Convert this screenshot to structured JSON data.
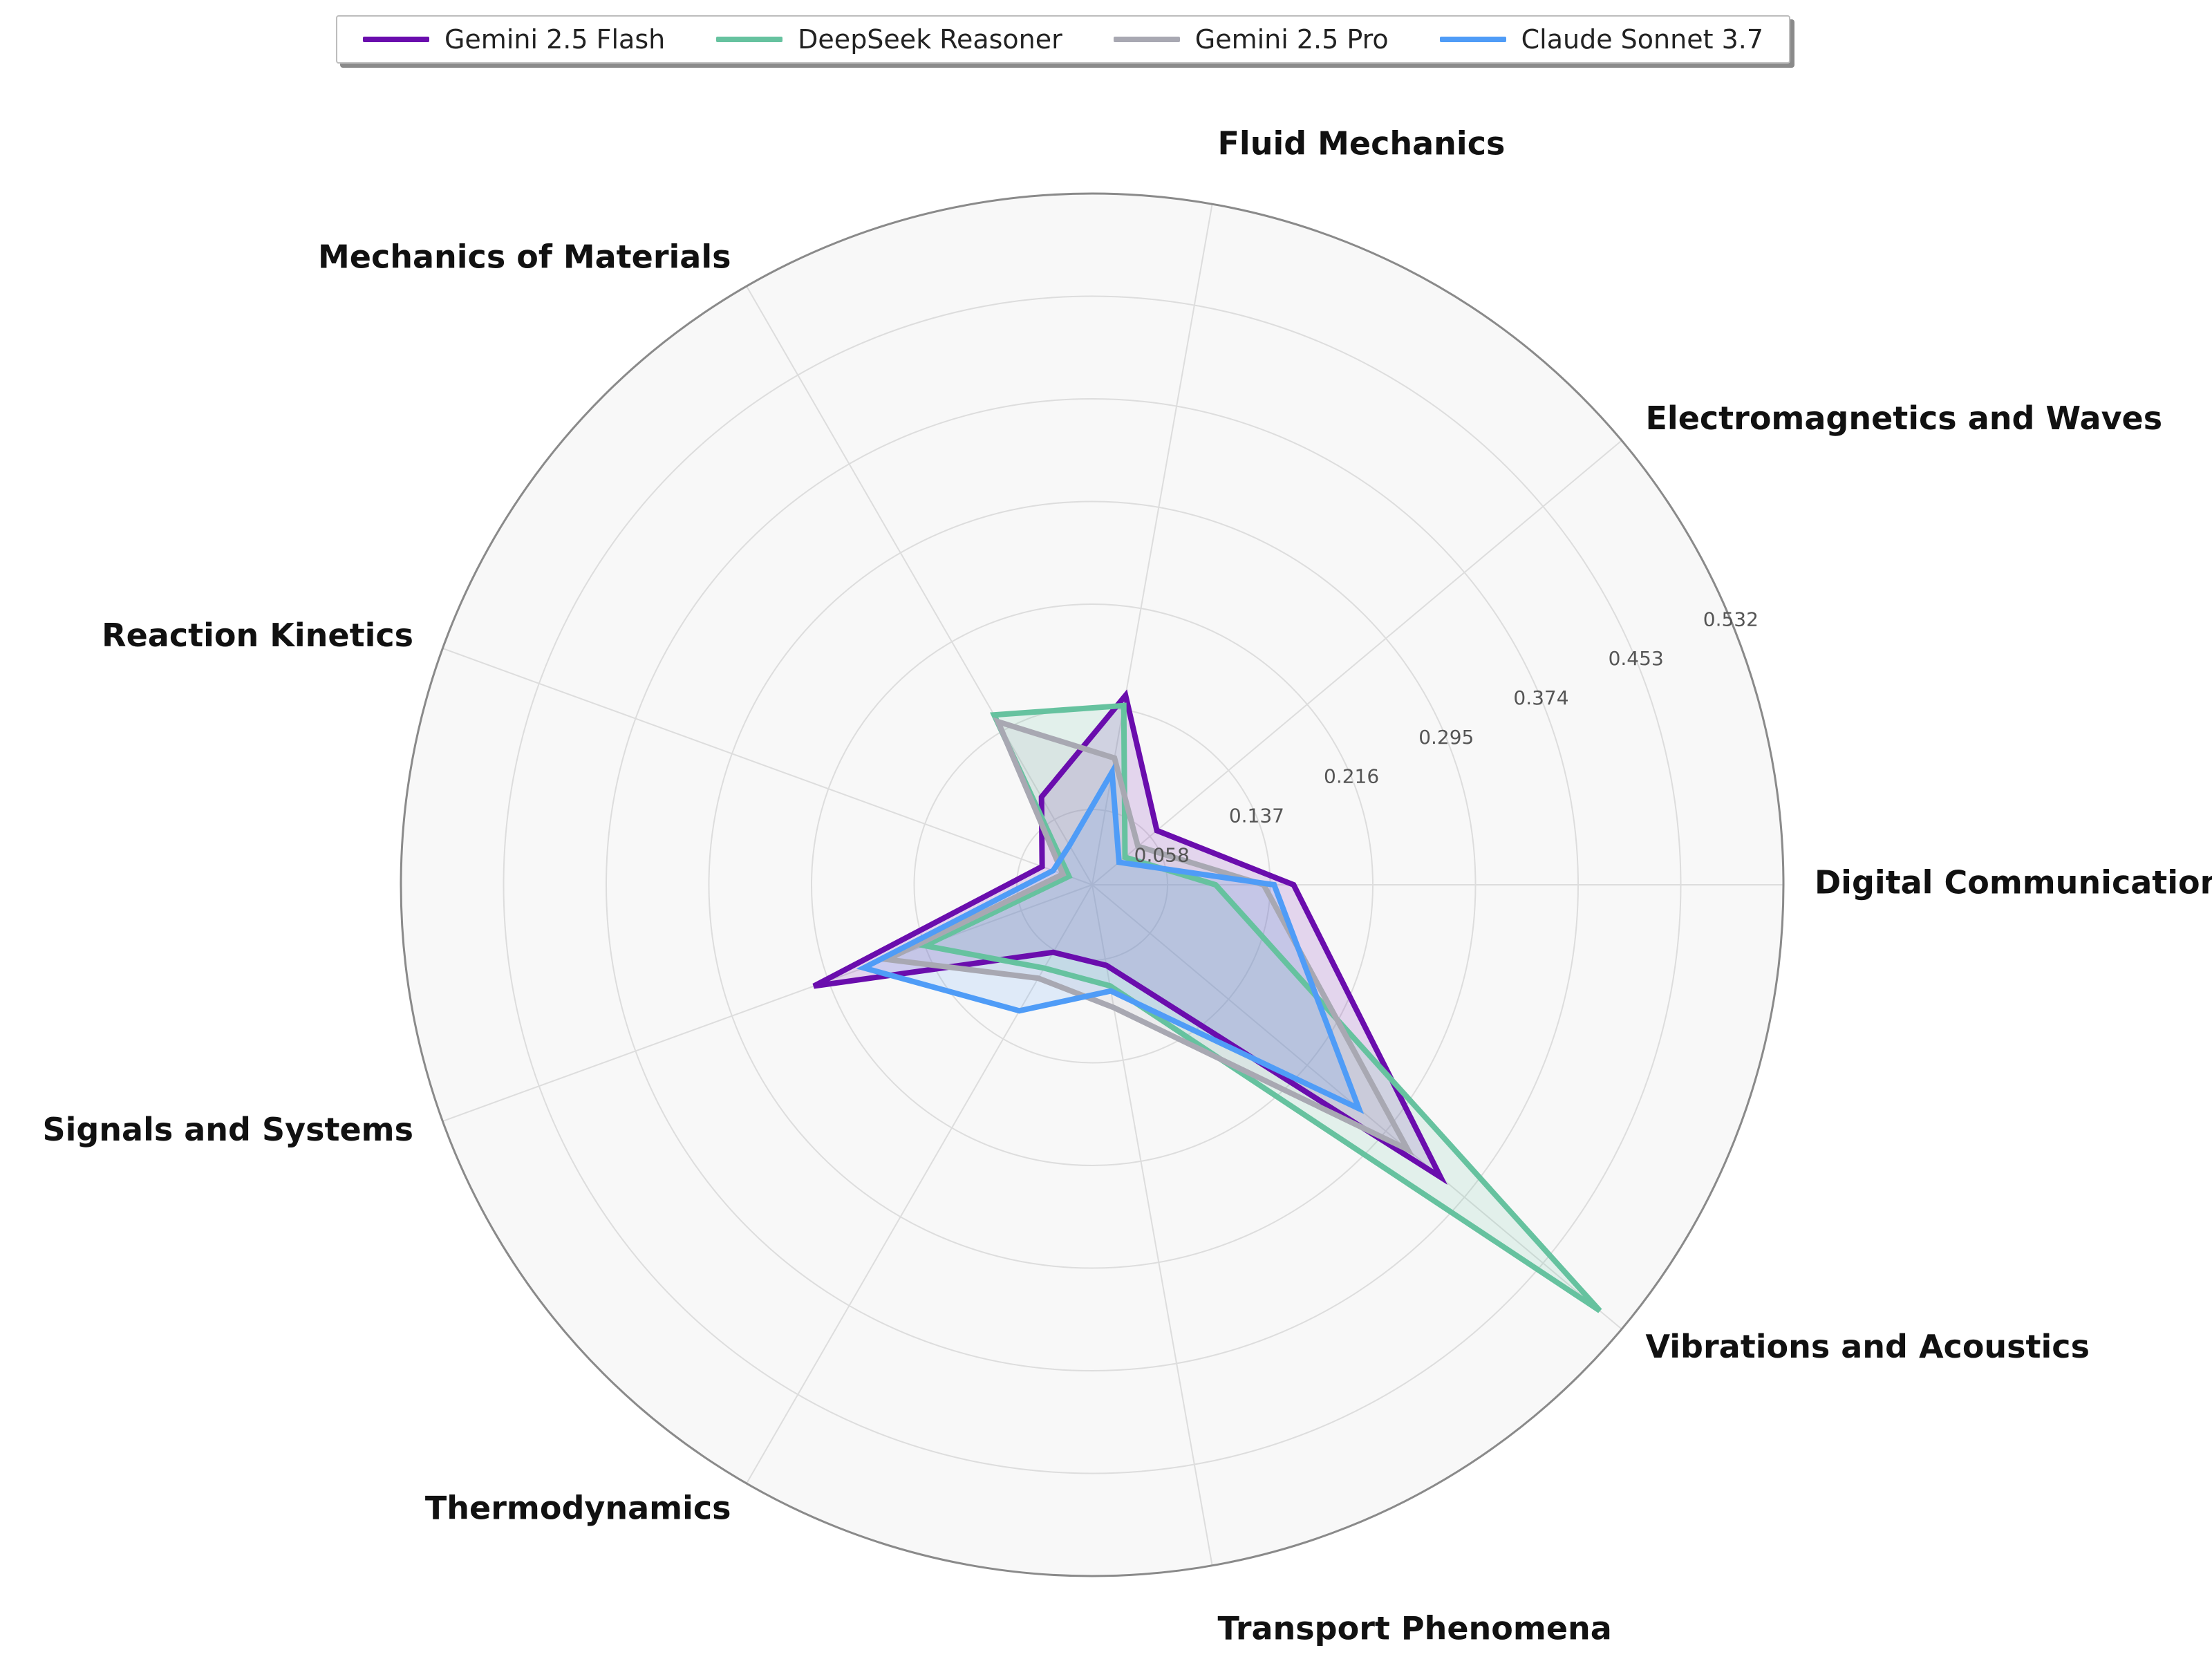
{
  "chart_data": {
    "type": "radar",
    "axes": [
      "Digital Communications",
      "Electromagnetics and Waves",
      "Fluid Mechanics",
      "Mechanics of Materials",
      "Reaction Kinetics",
      "Signals and Systems",
      "Thermodynamics",
      "Transport Phenomena",
      "Vibrations and Acoustics"
    ],
    "r_ticks": [
      "0.058",
      "0.137",
      "0.216",
      "0.295",
      "0.374",
      "0.453",
      "0.532"
    ],
    "r_range": [
      0.0,
      0.532
    ],
    "grid": true,
    "legend_position": "top-center",
    "series": [
      {
        "name": "Gemini 2.5 Flash",
        "color": "#6a0dad",
        "values": [
          0.155,
          0.065,
          0.148,
          0.078,
          0.041,
          0.228,
          0.06,
          0.063,
          0.35
        ]
      },
      {
        "name": "DeepSeek Reasoner",
        "color": "#66c29f",
        "values": [
          0.095,
          0.033,
          0.14,
          0.151,
          0.019,
          0.137,
          0.074,
          0.079,
          0.51
        ]
      },
      {
        "name": "Gemini 2.5 Pro",
        "color": "#a8a8b2",
        "values": [
          0.132,
          0.046,
          0.099,
          0.145,
          0.024,
          0.168,
          0.083,
          0.096,
          0.317
        ]
      },
      {
        "name": "Claude Sonnet 3.7",
        "color": "#4f9cf7",
        "values": [
          0.14,
          0.027,
          0.088,
          0.035,
          0.032,
          0.187,
          0.112,
          0.083,
          0.268
        ]
      }
    ]
  }
}
